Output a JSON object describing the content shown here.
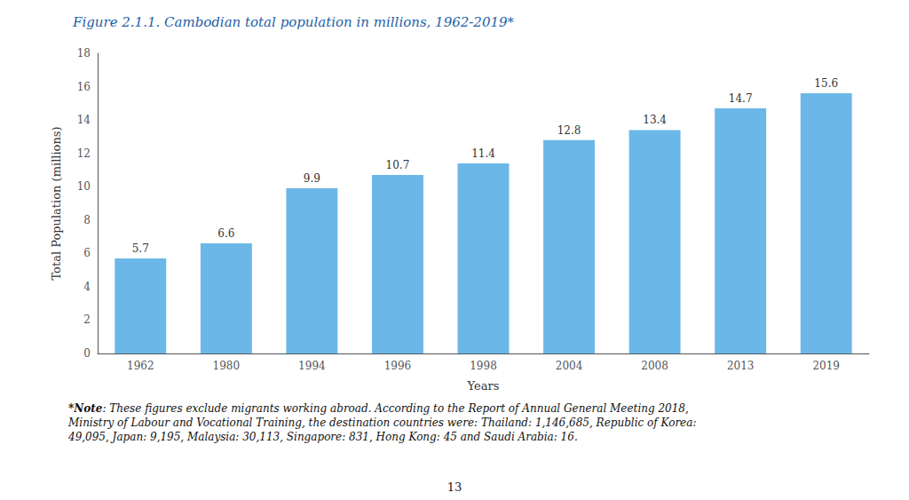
{
  "chart_data": {
    "type": "bar",
    "title": "Figure 2.1.1. Cambodian total population in millions, 1962-2019*",
    "x_label": "Years",
    "y_label": "Total Population (millions)",
    "categories": [
      "1962",
      "1980",
      "1994",
      "1996",
      "1998",
      "2004",
      "2008",
      "2013",
      "2019"
    ],
    "values": [
      5.7,
      6.6,
      9.9,
      10.7,
      11.4,
      12.8,
      13.4,
      14.7,
      15.6
    ],
    "color": "#6BB8E8",
    "ylim": [
      0,
      18
    ],
    "yticks": [
      0,
      2,
      4,
      6,
      8,
      10,
      12,
      14,
      16,
      18
    ],
    "grid": false,
    "data_labels": true,
    "annotations": [
      "*Note",
      ": These figures exclude migrants working abroad. According to the Report of Annual General Meeting 2018,\nMinistry of Labour and Vocational Training, the destination countries were: Thailand: 1,146,685, Republic of Korea:\n49,095, Japan: 9,195, Malaysia: 30,113, Singapore: 831, Hong Kong: 45 and Saudi Arabia: 16.",
      "13"
    ]
  }
}
